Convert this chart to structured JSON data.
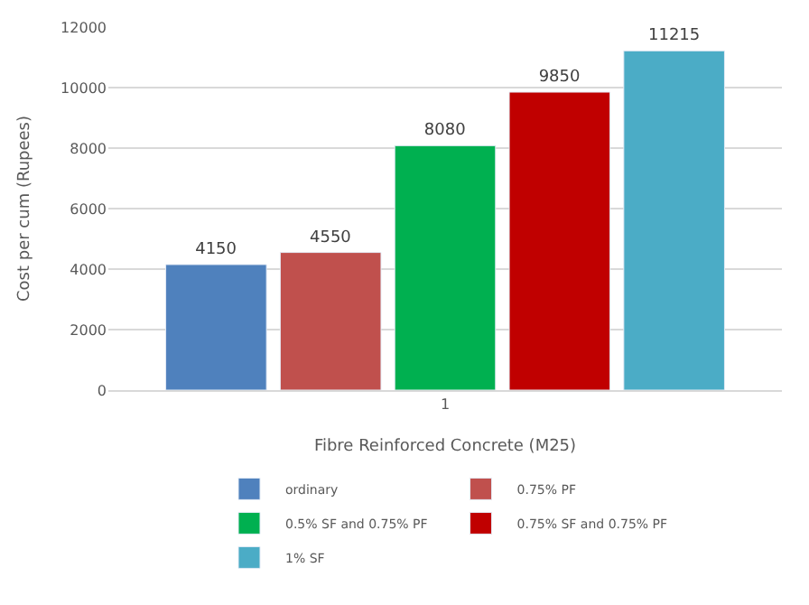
{
  "chart_data": {
    "type": "bar",
    "xlabel": "Fibre Reinforced Concrete (M25)",
    "ylabel": "Cost per cum (Rupees)",
    "categories": [
      "1"
    ],
    "series": [
      {
        "name": "ordinary",
        "color": "#4f81bd",
        "values": [
          4150
        ]
      },
      {
        "name": "0.75% PF",
        "color": "#c0504d",
        "values": [
          4550
        ]
      },
      {
        "name": "0.5% SF and 0.75% PF",
        "color": "#00b050",
        "values": [
          8080
        ]
      },
      {
        "name": "0.75% SF and 0.75% PF",
        "color": "#c00000",
        "values": [
          9850
        ]
      },
      {
        "name": "1% SF",
        "color": "#4bacc6",
        "values": [
          11215
        ]
      }
    ],
    "ylim": [
      0,
      12000
    ],
    "yticks": [
      0,
      2000,
      4000,
      6000,
      8000,
      10000,
      12000
    ],
    "grid": "y",
    "legend": "bottom",
    "data_labels": true
  }
}
